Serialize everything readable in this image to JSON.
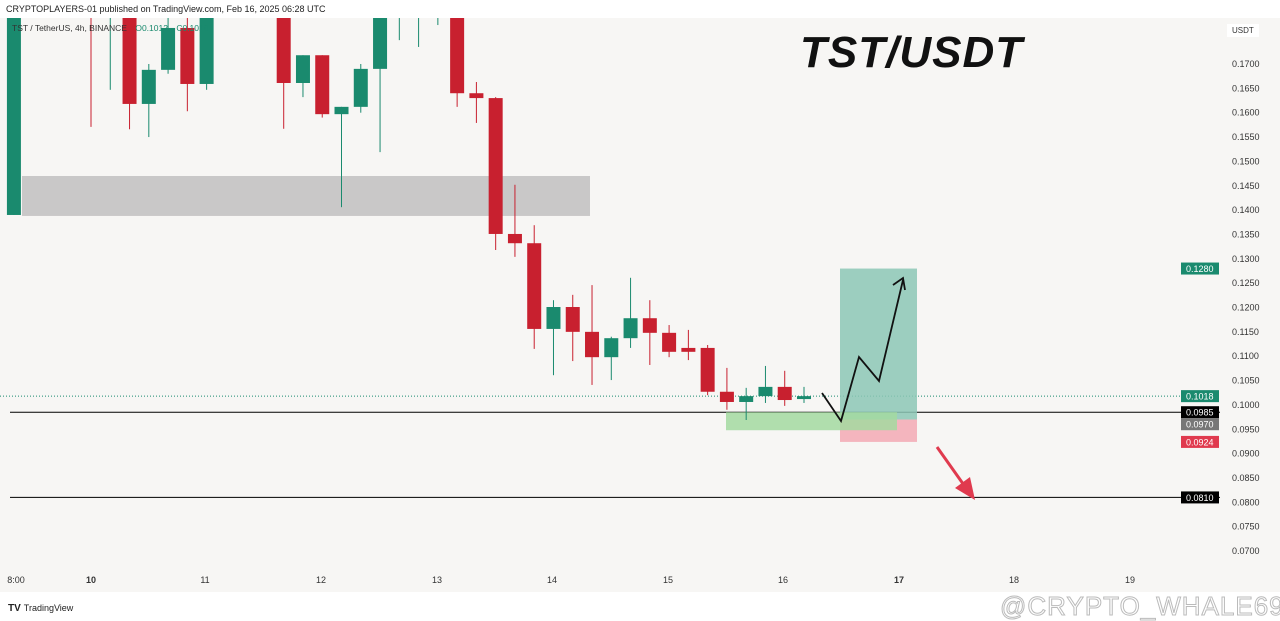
{
  "header": {
    "published": "CRYPTOPLAYERS-01 published on TradingView.com, Feb 16, 2025 06:28 UTC",
    "symbol": "TST / TetherUS, 4h, BINANCE",
    "open_label": "O0.1012",
    "close_label": "C0.1018"
  },
  "title": "TST/USDT",
  "footer": {
    "logo": "TradingView",
    "watermark": "@CRYPTO_WHALE69"
  },
  "colors": {
    "up": "#1a8a6e",
    "down": "#c8202f",
    "background": "#f7f6f4",
    "zone": "#c9c8c8",
    "tp_zone": "#8cc7b5",
    "stop_zone": "#f4b5be",
    "entry_zone": "#a3d9a0"
  },
  "chart_data": {
    "type": "candlestick",
    "interval": "4h",
    "ylabel": "USDT",
    "ylim": [
      0.066,
      0.18
    ],
    "y_ticks": [
      "0.1700",
      "0.1650",
      "0.1600",
      "0.1550",
      "0.1500",
      "0.1450",
      "0.1400",
      "0.1350",
      "0.1300",
      "0.1250",
      "0.1200",
      "0.1150",
      "0.1100",
      "0.1050",
      "0.1000",
      "0.0950",
      "0.0900",
      "0.0850",
      "0.0800",
      "0.0750",
      "0.0700"
    ],
    "x_ticks": [
      "8:00",
      "10",
      "11",
      "12",
      "13",
      "14",
      "15",
      "16",
      "17",
      "18",
      "19"
    ],
    "candles": [
      {
        "t": "02-09 08:00",
        "o": 0.139,
        "h": 0.18,
        "l": 0.139,
        "c": 0.18
      },
      {
        "t": "02-10 00:00",
        "o": 0.185,
        "h": 0.185,
        "l": 0.1571,
        "c": 0.18
      },
      {
        "t": "02-10 04:00",
        "o": 0.181,
        "h": 0.185,
        "l": 0.1647,
        "c": 0.185
      },
      {
        "t": "02-10 08:00",
        "o": 0.18,
        "h": 0.18,
        "l": 0.1566,
        "c": 0.1618
      },
      {
        "t": "02-10 12:00",
        "o": 0.1618,
        "h": 0.17,
        "l": 0.155,
        "c": 0.1688
      },
      {
        "t": "02-10 16:00",
        "o": 0.1688,
        "h": 0.18,
        "l": 0.168,
        "c": 0.1774
      },
      {
        "t": "02-10 20:00",
        "o": 0.1774,
        "h": 0.18,
        "l": 0.1603,
        "c": 0.1659
      },
      {
        "t": "02-11 00:00",
        "o": 0.1659,
        "h": 0.18,
        "l": 0.1647,
        "c": 0.18
      },
      {
        "t": "02-11 16:00",
        "o": 0.18,
        "h": 0.18,
        "l": 0.1567,
        "c": 0.1661
      },
      {
        "t": "02-11 20:00",
        "o": 0.1661,
        "h": 0.1718,
        "l": 0.1632,
        "c": 0.1718
      },
      {
        "t": "02-12 00:00",
        "o": 0.1718,
        "h": 0.1718,
        "l": 0.159,
        "c": 0.1597
      },
      {
        "t": "02-12 04:00",
        "o": 0.1597,
        "h": 0.1612,
        "l": 0.1406,
        "c": 0.1612
      },
      {
        "t": "02-12 08:00",
        "o": 0.1612,
        "h": 0.17,
        "l": 0.16,
        "c": 0.169
      },
      {
        "t": "02-12 12:00",
        "o": 0.169,
        "h": 0.18,
        "l": 0.1519,
        "c": 0.18
      },
      {
        "t": "02-12 16:00",
        "o": 0.181,
        "h": 0.185,
        "l": 0.1749,
        "c": 0.185
      },
      {
        "t": "02-12 20:00",
        "o": 0.181,
        "h": 0.185,
        "l": 0.1735,
        "c": 0.185
      },
      {
        "t": "02-13 00:00",
        "o": 0.181,
        "h": 0.185,
        "l": 0.178,
        "c": 0.185
      },
      {
        "t": "02-13 04:00",
        "o": 0.182,
        "h": 0.182,
        "l": 0.1612,
        "c": 0.164
      },
      {
        "t": "02-13 08:00",
        "o": 0.164,
        "h": 0.1663,
        "l": 0.1579,
        "c": 0.163
      },
      {
        "t": "02-13 12:00",
        "o": 0.163,
        "h": 0.1632,
        "l": 0.1318,
        "c": 0.1351
      },
      {
        "t": "02-13 16:00",
        "o": 0.1351,
        "h": 0.1452,
        "l": 0.1304,
        "c": 0.1332
      },
      {
        "t": "02-13 20:00",
        "o": 0.1332,
        "h": 0.1369,
        "l": 0.1115,
        "c": 0.1156
      },
      {
        "t": "02-14 00:00",
        "o": 0.1156,
        "h": 0.1215,
        "l": 0.1061,
        "c": 0.1201
      },
      {
        "t": "02-14 04:00",
        "o": 0.1201,
        "h": 0.1226,
        "l": 0.109,
        "c": 0.115
      },
      {
        "t": "02-14 08:00",
        "o": 0.115,
        "h": 0.1246,
        "l": 0.1041,
        "c": 0.1098
      },
      {
        "t": "02-14 12:00",
        "o": 0.1098,
        "h": 0.114,
        "l": 0.1051,
        "c": 0.1137
      },
      {
        "t": "02-14 16:00",
        "o": 0.1137,
        "h": 0.1261,
        "l": 0.1117,
        "c": 0.1178
      },
      {
        "t": "02-14 20:00",
        "o": 0.1178,
        "h": 0.1215,
        "l": 0.1082,
        "c": 0.1148
      },
      {
        "t": "02-15 00:00",
        "o": 0.1148,
        "h": 0.1164,
        "l": 0.1098,
        "c": 0.1109
      },
      {
        "t": "02-15 04:00",
        "o": 0.1117,
        "h": 0.1154,
        "l": 0.1092,
        "c": 0.1109
      },
      {
        "t": "02-15 08:00",
        "o": 0.1117,
        "h": 0.1123,
        "l": 0.102,
        "c": 0.1027
      },
      {
        "t": "02-15 12:00",
        "o": 0.1027,
        "h": 0.1076,
        "l": 0.099,
        "c": 0.1006
      },
      {
        "t": "02-15 16:00",
        "o": 0.1006,
        "h": 0.1035,
        "l": 0.0969,
        "c": 0.1018
      },
      {
        "t": "02-15 20:00",
        "o": 0.1018,
        "h": 0.108,
        "l": 0.1004,
        "c": 0.1037
      },
      {
        "t": "02-16 00:00",
        "o": 0.1037,
        "h": 0.107,
        "l": 0.0998,
        "c": 0.101
      },
      {
        "t": "02-16 04:00",
        "o": 0.1012,
        "h": 0.1037,
        "l": 0.1004,
        "c": 0.1018
      }
    ],
    "annotations": {
      "resistance_zone": [
        0.1388,
        0.147
      ],
      "support_line": 0.0985,
      "target_line": 0.081,
      "last_price": 0.1018,
      "entry_zone": [
        0.0948,
        0.0985
      ],
      "long_position": {
        "target": 0.128,
        "entry": 0.097,
        "stop": 0.0924
      },
      "price_labels": [
        {
          "text": "0.1280",
          "color": "#1a8a6e"
        },
        {
          "text": "0.1018",
          "color": "#1a8a6e"
        },
        {
          "text": "0.0985",
          "color": "#000000"
        },
        {
          "text": "0.0970",
          "color": "#777777"
        },
        {
          "text": "0.0924",
          "color": "#e03a4e"
        },
        {
          "text": "0.0810",
          "color": "#000000"
        }
      ]
    }
  }
}
